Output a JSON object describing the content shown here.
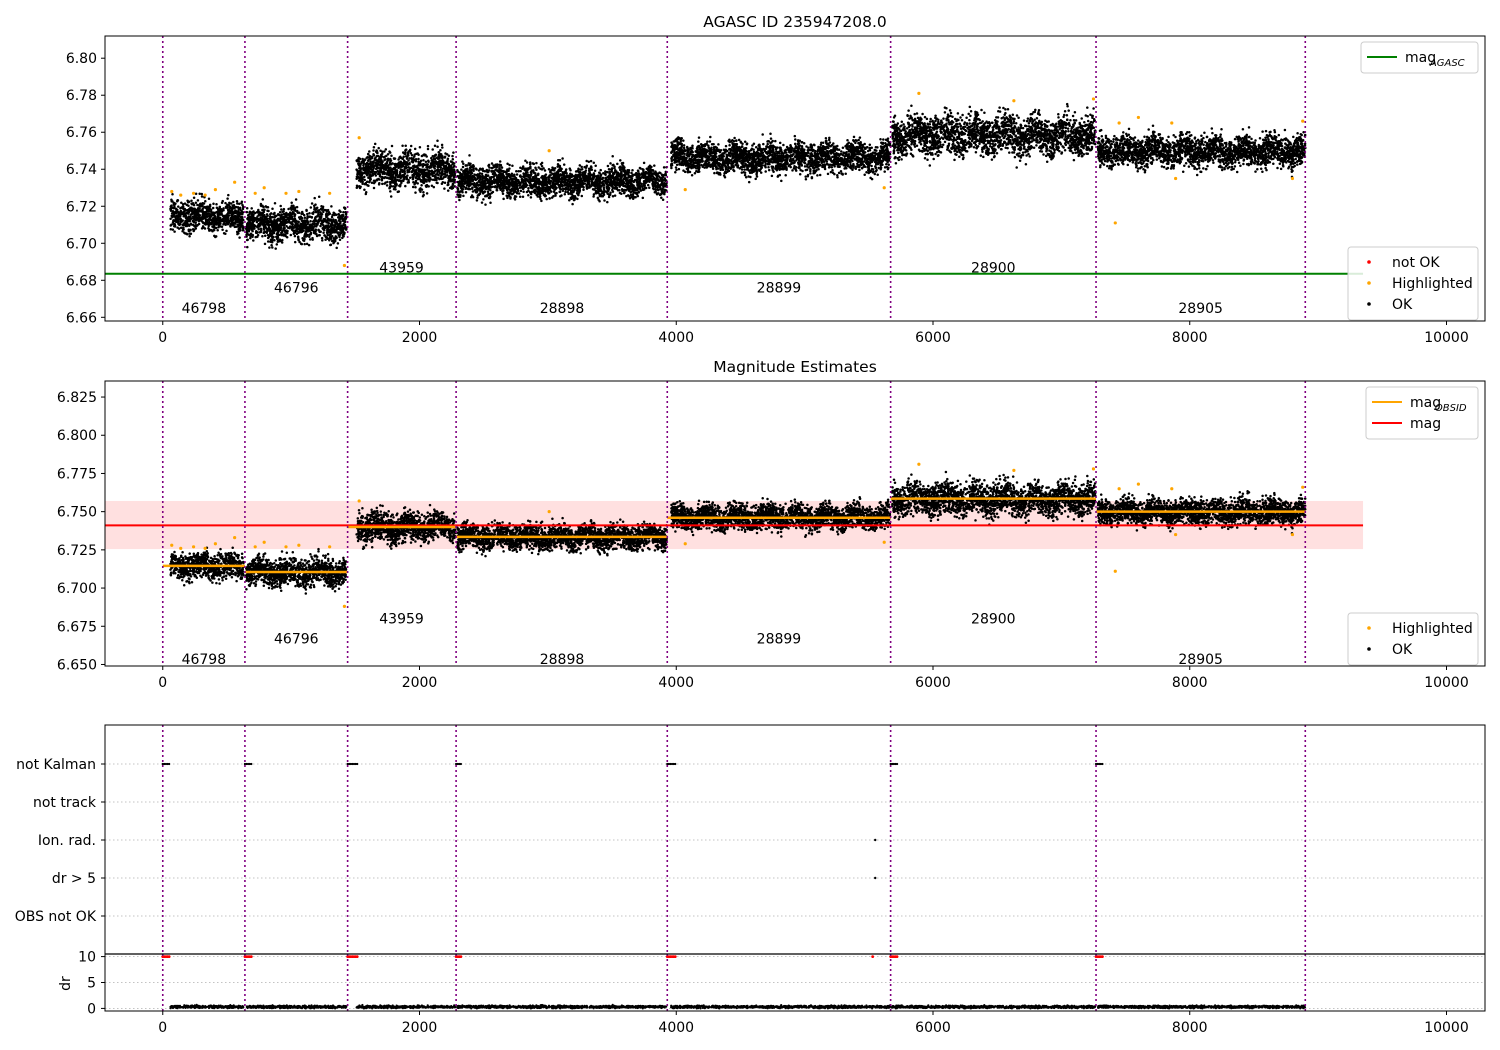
{
  "chart_data": [
    {
      "panel": "top",
      "type": "scatter",
      "title": "AGASC ID 235947208.0",
      "xlim": [
        -450,
        10300
      ],
      "ylim": [
        6.658,
        6.812
      ],
      "x_ticks": [
        0,
        2000,
        4000,
        6000,
        8000,
        10000
      ],
      "y_ticks": [
        6.66,
        6.68,
        6.7,
        6.72,
        6.74,
        6.76,
        6.78,
        6.8
      ],
      "y_tick_decimals": 2,
      "obsid_boundaries": [
        0,
        640,
        1440,
        2285,
        3930,
        5670,
        7270,
        8900
      ],
      "obsid_labels": [
        {
          "obsid": "46798",
          "x": 320,
          "y": 6.665
        },
        {
          "obsid": "46796",
          "x": 1040,
          "y": 6.676
        },
        {
          "obsid": "43959",
          "x": 1860,
          "y": 6.687
        },
        {
          "obsid": "28898",
          "x": 3110,
          "y": 6.665
        },
        {
          "obsid": "28899",
          "x": 4800,
          "y": 6.676
        },
        {
          "obsid": "28900",
          "x": 6470,
          "y": 6.687
        },
        {
          "obsid": "28905",
          "x": 8085,
          "y": 6.665
        }
      ],
      "reference_line": {
        "name": "mag_AGASC",
        "y": 6.6835,
        "x": [
          -450,
          9350
        ],
        "color": "#008000"
      },
      "segments": [
        {
          "x": [
            60,
            630
          ],
          "mean": 6.7145,
          "spread": 0.0055
        },
        {
          "x": [
            650,
            1430
          ],
          "mean": 6.7105,
          "spread": 0.006
        },
        {
          "x": [
            1510,
            2280
          ],
          "mean": 6.74,
          "spread": 0.0065
        },
        {
          "x": [
            2295,
            3925
          ],
          "mean": 6.7335,
          "spread": 0.0055
        },
        {
          "x": [
            3960,
            5665
          ],
          "mean": 6.7465,
          "spread": 0.0055
        },
        {
          "x": [
            5680,
            7265
          ],
          "mean": 6.7585,
          "spread": 0.007
        },
        {
          "x": [
            7285,
            8900
          ],
          "mean": 6.75,
          "spread": 0.0055
        }
      ],
      "highlighted_points": [
        [
          70,
          6.728
        ],
        [
          140,
          6.726
        ],
        [
          240,
          6.727
        ],
        [
          330,
          6.726
        ],
        [
          410,
          6.729
        ],
        [
          560,
          6.733
        ],
        [
          720,
          6.727
        ],
        [
          790,
          6.73
        ],
        [
          960,
          6.727
        ],
        [
          1060,
          6.728
        ],
        [
          1300,
          6.727
        ],
        [
          1415,
          6.688
        ],
        [
          1530,
          6.757
        ],
        [
          3010,
          6.75
        ],
        [
          4070,
          6.729
        ],
        [
          5620,
          6.73
        ],
        [
          5890,
          6.781
        ],
        [
          6630,
          6.777
        ],
        [
          7250,
          6.778
        ],
        [
          7420,
          6.711
        ],
        [
          7450,
          6.765
        ],
        [
          7600,
          6.768
        ],
        [
          7860,
          6.765
        ],
        [
          7890,
          6.735
        ],
        [
          8800,
          6.735
        ],
        [
          8880,
          6.766
        ]
      ],
      "legends": [
        {
          "position": "upper-right",
          "entries": [
            {
              "label": "mag",
              "sub": "AGASC",
              "kind": "line",
              "color": "#008000"
            }
          ]
        },
        {
          "position": "lower-right",
          "entries": [
            {
              "label": "not OK",
              "kind": "dot",
              "color": "#ff0000"
            },
            {
              "label": "Highlighted",
              "kind": "dot",
              "color": "#ffa500"
            },
            {
              "label": "OK",
              "kind": "dot",
              "color": "#000000"
            }
          ]
        }
      ]
    },
    {
      "panel": "middle",
      "type": "scatter",
      "title": "Magnitude Estimates",
      "xlim": [
        -450,
        10300
      ],
      "ylim": [
        6.649,
        6.8355
      ],
      "x_ticks": [
        0,
        2000,
        4000,
        6000,
        8000,
        10000
      ],
      "y_ticks": [
        6.65,
        6.675,
        6.7,
        6.725,
        6.75,
        6.775,
        6.8,
        6.825
      ],
      "y_tick_decimals": 3,
      "obsid_boundaries": [
        0,
        640,
        1440,
        2285,
        3930,
        5670,
        7270,
        8900
      ],
      "obsid_labels": [
        {
          "obsid": "46798",
          "x": 320,
          "y": 6.6535
        },
        {
          "obsid": "46796",
          "x": 1040,
          "y": 6.667
        },
        {
          "obsid": "43959",
          "x": 1860,
          "y": 6.68
        },
        {
          "obsid": "28898",
          "x": 3110,
          "y": 6.6535
        },
        {
          "obsid": "28899",
          "x": 4800,
          "y": 6.667
        },
        {
          "obsid": "28900",
          "x": 6470,
          "y": 6.68
        }
      ],
      "mag_line": {
        "name": "mag",
        "y": 6.741,
        "band": [
          6.7255,
          6.757
        ],
        "x": [
          -450,
          9350
        ],
        "color": "#ff0000"
      },
      "obsid_mag_lines": [
        {
          "x": [
            0,
            640
          ],
          "y": 6.7145
        },
        {
          "x": [
            640,
            1440
          ],
          "y": 6.7105
        },
        {
          "x": [
            1440,
            2285
          ],
          "y": 6.74
        },
        {
          "x": [
            2285,
            3930
          ],
          "y": 6.7335
        },
        {
          "x": [
            3930,
            5670
          ],
          "y": 6.746
        },
        {
          "x": [
            5670,
            7270
          ],
          "y": 6.7585
        },
        {
          "x": [
            7270,
            8900
          ],
          "y": 6.75
        }
      ],
      "legends": [
        {
          "position": "upper-right",
          "entries": [
            {
              "label": "mag",
              "sub": "OBSID",
              "kind": "line",
              "color": "#ffa500"
            },
            {
              "label": "mag",
              "kind": "line",
              "color": "#ff0000"
            }
          ]
        },
        {
          "position": "lower-right",
          "entries": [
            {
              "label": "Highlighted",
              "kind": "dot",
              "color": "#ffa500"
            },
            {
              "label": "OK",
              "kind": "dot",
              "color": "#000000"
            }
          ]
        }
      ]
    },
    {
      "panel": "flags",
      "type": "scatter",
      "xlim": [
        -450,
        10300
      ],
      "categories": [
        "not Kalman",
        "not track",
        "Ion. rad.",
        "dr > 5",
        "OBS not OK"
      ],
      "flag_marks": [
        {
          "category": "not Kalman",
          "x": [
            0,
            60
          ]
        },
        {
          "category": "not Kalman",
          "x": [
            640,
            690
          ]
        },
        {
          "category": "not Kalman",
          "x": [
            1440,
            1520
          ]
        },
        {
          "category": "not Kalman",
          "x": [
            2285,
            2330
          ]
        },
        {
          "category": "not Kalman",
          "x": [
            3930,
            4000
          ]
        },
        {
          "category": "not Kalman",
          "x": [
            5670,
            5720
          ]
        },
        {
          "category": "not Kalman",
          "x": [
            7270,
            7330
          ]
        },
        {
          "category": "Ion. rad.",
          "x": [
            5550,
            5550
          ]
        },
        {
          "category": "dr > 5",
          "x": [
            5550,
            5550
          ]
        }
      ]
    },
    {
      "panel": "dr",
      "type": "scatter",
      "ylabel": "dr",
      "xlim": [
        -450,
        10300
      ],
      "ylim": [
        -0.5,
        10.5
      ],
      "x_ticks": [
        0,
        2000,
        4000,
        6000,
        8000,
        10000
      ],
      "y_ticks": [
        0,
        5,
        10
      ],
      "not_ok_marks": [
        {
          "x": [
            0,
            60
          ],
          "y": 10
        },
        {
          "x": [
            640,
            690
          ],
          "y": 10
        },
        {
          "x": [
            1440,
            1520
          ],
          "y": 10
        },
        {
          "x": [
            2285,
            2330
          ],
          "y": 10
        },
        {
          "x": [
            3930,
            4000
          ],
          "y": 10
        },
        {
          "x": [
            5530,
            5530
          ],
          "y": 10
        },
        {
          "x": [
            5670,
            5720
          ],
          "y": 10
        },
        {
          "x": [
            7270,
            7330
          ],
          "y": 10
        }
      ],
      "ok_dr_level": 0.3,
      "ok_dr_spread": 0.25
    }
  ],
  "colors": {
    "ok": "#000000",
    "highlighted": "#ffa500",
    "not_ok": "#ff0000",
    "obsid_boundary": "#800080",
    "grid": "#b0b0b0"
  }
}
